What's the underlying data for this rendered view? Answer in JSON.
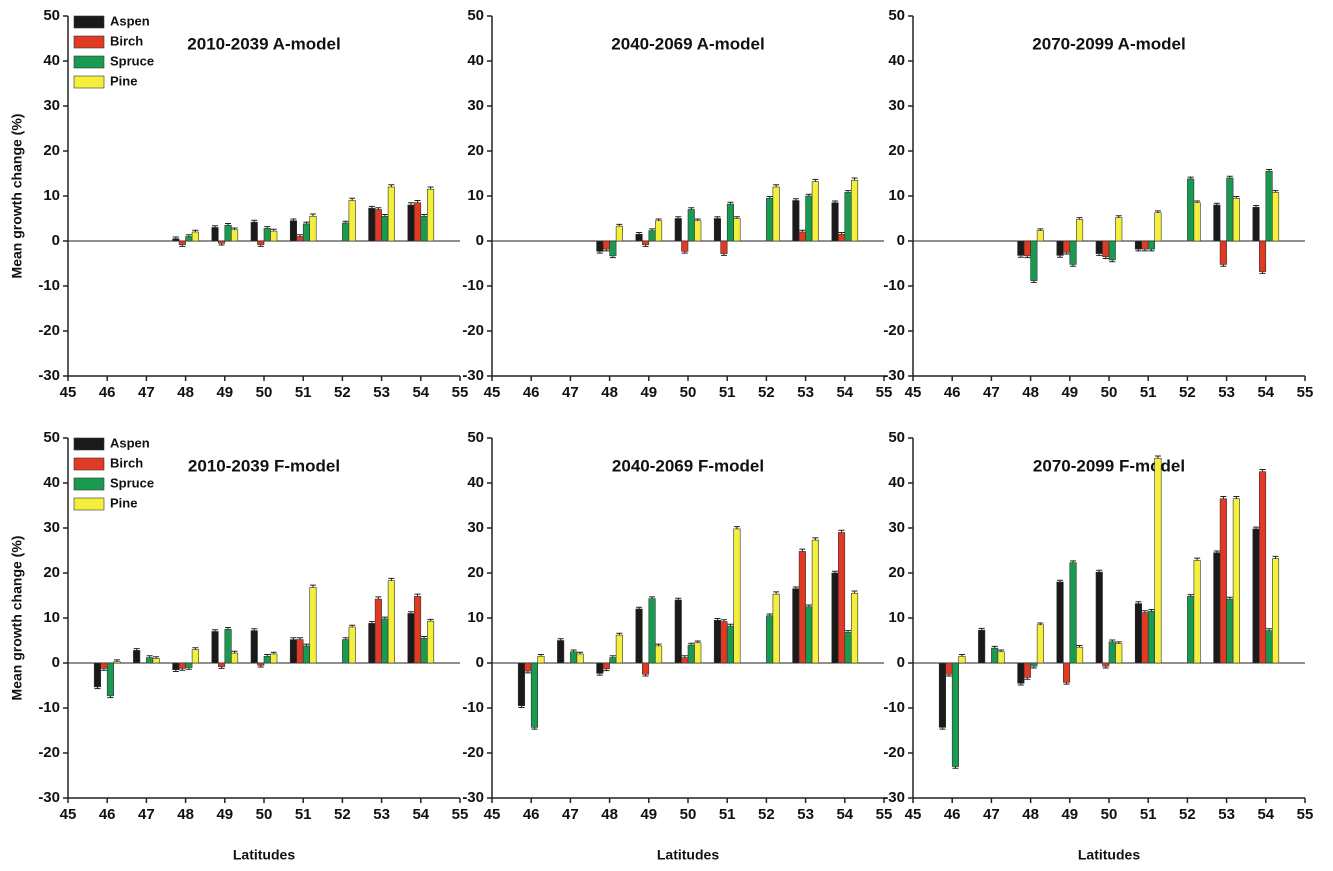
{
  "chart_data": [
    {
      "type": "bar",
      "title": "2010-2039 A-model",
      "ylabel": "Mean growth change (%)",
      "legend": "upper left",
      "x": [
        46,
        47,
        48,
        49,
        50,
        51,
        52,
        53,
        54
      ],
      "xlim": [
        45,
        55
      ],
      "xticks": [
        45,
        46,
        47,
        48,
        49,
        50,
        51,
        52,
        53,
        54,
        55
      ],
      "ylim": [
        -30,
        50
      ],
      "yticks": [
        -30,
        -20,
        -10,
        0,
        10,
        20,
        30,
        40,
        50
      ],
      "series": [
        {
          "name": "Aspen",
          "color": "#1a1a1a",
          "values": [
            null,
            null,
            0.5,
            3,
            4.2,
            4.5,
            null,
            7.3,
            8
          ],
          "errors": [
            null,
            null,
            0.4,
            0.4,
            0.4,
            0.4,
            null,
            0.4,
            0.5
          ]
        },
        {
          "name": "Birch",
          "color": "#e03a24",
          "values": [
            null,
            null,
            -0.8,
            -0.5,
            -0.8,
            1,
            null,
            7,
            8.5
          ],
          "errors": [
            null,
            null,
            0.4,
            0.4,
            0.4,
            0.4,
            null,
            0.4,
            0.5
          ]
        },
        {
          "name": "Spruce",
          "color": "#1a9a50",
          "values": [
            null,
            null,
            1,
            3.5,
            2.8,
            3.8,
            4,
            5.5,
            5.5
          ],
          "errors": [
            null,
            null,
            0.4,
            0.4,
            0.4,
            0.4,
            0.4,
            0.4,
            0.4
          ]
        },
        {
          "name": "Pine",
          "color": "#f3ef3c",
          "values": [
            null,
            null,
            2,
            2.5,
            2.2,
            5.5,
            9,
            12,
            11.5
          ],
          "errors": [
            null,
            null,
            0.4,
            0.4,
            0.4,
            0.5,
            0.5,
            0.5,
            0.5
          ]
        }
      ]
    },
    {
      "type": "bar",
      "title": "2040-2069 A-model",
      "x": [
        46,
        47,
        48,
        49,
        50,
        51,
        52,
        53,
        54
      ],
      "xlim": [
        45,
        55
      ],
      "xticks": [
        45,
        46,
        47,
        48,
        49,
        50,
        51,
        52,
        53,
        54,
        55
      ],
      "ylim": [
        -30,
        50
      ],
      "yticks": [
        -30,
        -20,
        -10,
        0,
        10,
        20,
        30,
        40,
        50
      ],
      "series": [
        {
          "color": "#1a1a1a",
          "values": [
            null,
            null,
            -2.3,
            1.5,
            5,
            5,
            null,
            9,
            8.5
          ],
          "errors": [
            null,
            null,
            0.4,
            0.4,
            0.4,
            0.4,
            null,
            0.4,
            0.4
          ]
        },
        {
          "color": "#e03a24",
          "values": [
            null,
            null,
            -1.8,
            -0.8,
            -2.3,
            -2.8,
            null,
            2,
            1.5
          ],
          "errors": [
            null,
            null,
            0.4,
            0.4,
            0.4,
            0.4,
            null,
            0.4,
            0.4
          ]
        },
        {
          "color": "#1a9a50",
          "values": [
            null,
            null,
            -3.3,
            2.3,
            7,
            8.2,
            9.5,
            10,
            10.8
          ],
          "errors": [
            null,
            null,
            0.4,
            0.4,
            0.4,
            0.4,
            0.4,
            0.4,
            0.4
          ]
        },
        {
          "color": "#f3ef3c",
          "values": [
            null,
            null,
            3.3,
            4.5,
            4.5,
            5,
            12,
            13.2,
            13.5
          ],
          "errors": [
            null,
            null,
            0.4,
            0.4,
            0.4,
            0.4,
            0.5,
            0.5,
            0.5
          ]
        }
      ]
    },
    {
      "type": "bar",
      "title": "2070-2099 A-model",
      "x": [
        46,
        47,
        48,
        49,
        50,
        51,
        52,
        53,
        54
      ],
      "xlim": [
        45,
        55
      ],
      "xticks": [
        45,
        46,
        47,
        48,
        49,
        50,
        51,
        52,
        53,
        54,
        55
      ],
      "ylim": [
        -30,
        50
      ],
      "yticks": [
        -30,
        -20,
        -10,
        0,
        10,
        20,
        30,
        40,
        50
      ],
      "series": [
        {
          "color": "#1a1a1a",
          "values": [
            null,
            null,
            -3.2,
            -3.2,
            -2.8,
            -1.8,
            null,
            8,
            7.5
          ],
          "errors": [
            null,
            null,
            0.4,
            0.4,
            0.4,
            0.4,
            null,
            0.4,
            0.4
          ]
        },
        {
          "color": "#e03a24",
          "values": [
            null,
            null,
            -3.3,
            -2.5,
            -3.5,
            -1.8,
            null,
            -5.2,
            -6.8
          ],
          "errors": [
            null,
            null,
            0.4,
            0.4,
            0.4,
            0.4,
            null,
            0.4,
            0.4
          ]
        },
        {
          "color": "#1a9a50",
          "values": [
            null,
            null,
            -8.8,
            -5.2,
            -4.2,
            -1.8,
            13.8,
            14,
            15.5
          ],
          "errors": [
            null,
            null,
            0.4,
            0.4,
            0.4,
            0.4,
            0.4,
            0.4,
            0.4
          ]
        },
        {
          "color": "#f3ef3c",
          "values": [
            null,
            null,
            2.3,
            4.8,
            5.2,
            6.3,
            8.5,
            9.5,
            10.8
          ],
          "errors": [
            null,
            null,
            0.4,
            0.4,
            0.4,
            0.4,
            0.4,
            0.4,
            0.4
          ]
        }
      ]
    },
    {
      "type": "bar",
      "title": "2010-2039 F-model",
      "ylabel": "Mean growth change (%)",
      "xlabel": "Latitudes",
      "legend": "upper left",
      "x": [
        46,
        47,
        48,
        49,
        50,
        51,
        52,
        53,
        54
      ],
      "xlim": [
        45,
        55
      ],
      "xticks": [
        45,
        46,
        47,
        48,
        49,
        50,
        51,
        52,
        53,
        54,
        55
      ],
      "ylim": [
        -30,
        50
      ],
      "yticks": [
        -30,
        -20,
        -10,
        0,
        10,
        20,
        30,
        40,
        50
      ],
      "series": [
        {
          "name": "Aspen",
          "color": "#1a1a1a",
          "values": [
            -5.3,
            2.8,
            -1.5,
            7,
            7.2,
            5.2,
            null,
            8.8,
            11
          ],
          "errors": [
            0.4,
            0.4,
            0.4,
            0.4,
            0.4,
            0.4,
            null,
            0.4,
            0.4
          ]
        },
        {
          "name": "Birch",
          "color": "#e03a24",
          "values": [
            -1.2,
            null,
            -1.2,
            -0.8,
            -0.5,
            5.2,
            null,
            14.2,
            14.8
          ],
          "errors": [
            0.4,
            null,
            0.4,
            0.4,
            0.4,
            0.4,
            null,
            0.5,
            0.5
          ]
        },
        {
          "name": "Spruce",
          "color": "#1a9a50",
          "values": [
            -7.3,
            1.2,
            -1,
            7.5,
            1.5,
            3.8,
            5.2,
            9.8,
            5.5
          ],
          "errors": [
            0.4,
            0.4,
            0.4,
            0.4,
            0.4,
            0.4,
            0.4,
            0.4,
            0.4
          ]
        },
        {
          "name": "Pine",
          "color": "#f3ef3c",
          "values": [
            0.3,
            1,
            3,
            2.2,
            2,
            16.8,
            8,
            18.3,
            9.3
          ],
          "errors": [
            0.4,
            0.4,
            0.4,
            0.4,
            0.4,
            0.5,
            0.4,
            0.5,
            0.4
          ]
        }
      ]
    },
    {
      "type": "bar",
      "title": "2040-2069 F-model",
      "xlabel": "Latitudes",
      "x": [
        46,
        47,
        48,
        49,
        50,
        51,
        52,
        53,
        54
      ],
      "xlim": [
        45,
        55
      ],
      "xticks": [
        45,
        46,
        47,
        48,
        49,
        50,
        51,
        52,
        53,
        54,
        55
      ],
      "ylim": [
        -30,
        50
      ],
      "yticks": [
        -30,
        -20,
        -10,
        0,
        10,
        20,
        30,
        40,
        50
      ],
      "series": [
        {
          "color": "#1a1a1a",
          "values": [
            -9.5,
            5,
            -2.3,
            12,
            14,
            9.5,
            null,
            16.5,
            20
          ],
          "errors": [
            0.4,
            0.4,
            0.4,
            0.4,
            0.4,
            0.4,
            null,
            0.4,
            0.4
          ]
        },
        {
          "color": "#e03a24",
          "values": [
            -1.8,
            null,
            -1.3,
            -2.5,
            1.2,
            9.2,
            null,
            24.8,
            29
          ],
          "errors": [
            0.4,
            null,
            0.4,
            0.4,
            0.4,
            0.4,
            null,
            0.5,
            0.5
          ]
        },
        {
          "color": "#1a9a50",
          "values": [
            -14.3,
            2.5,
            1.2,
            14.3,
            4,
            8.2,
            10.5,
            12.5,
            6.8
          ],
          "errors": [
            0.4,
            0.4,
            0.4,
            0.4,
            0.4,
            0.4,
            0.4,
            0.4,
            0.4
          ]
        },
        {
          "color": "#f3ef3c",
          "values": [
            1.5,
            2,
            6.2,
            3.8,
            4.5,
            29.8,
            15.3,
            27.3,
            15.5
          ],
          "errors": [
            0.4,
            0.4,
            0.4,
            0.4,
            0.4,
            0.5,
            0.5,
            0.5,
            0.5
          ]
        }
      ]
    },
    {
      "type": "bar",
      "title": "2070-2099 F-model",
      "xlabel": "Latitudes",
      "x": [
        46,
        47,
        48,
        49,
        50,
        51,
        52,
        53,
        54
      ],
      "xlim": [
        45,
        55
      ],
      "xticks": [
        45,
        46,
        47,
        48,
        49,
        50,
        51,
        52,
        53,
        54,
        55
      ],
      "ylim": [
        -30,
        50
      ],
      "yticks": [
        -30,
        -20,
        -10,
        0,
        10,
        20,
        30,
        40,
        50
      ],
      "series": [
        {
          "color": "#1a1a1a",
          "values": [
            -14.3,
            7.3,
            -4.5,
            18,
            20.2,
            13.2,
            null,
            24.5,
            29.8
          ],
          "errors": [
            0.4,
            0.4,
            0.4,
            0.4,
            0.4,
            0.4,
            null,
            0.4,
            0.4
          ]
        },
        {
          "color": "#e03a24",
          "values": [
            -2.5,
            null,
            -3.2,
            -4.3,
            -0.7,
            11.2,
            null,
            36.5,
            42.5
          ],
          "errors": [
            0.4,
            null,
            0.4,
            0.4,
            0.4,
            0.4,
            null,
            0.5,
            0.5
          ]
        },
        {
          "color": "#1a9a50",
          "values": [
            -23,
            3.3,
            -0.7,
            22.3,
            4.7,
            11.5,
            14.8,
            14.2,
            7.2
          ],
          "errors": [
            0.4,
            0.4,
            0.4,
            0.4,
            0.4,
            0.4,
            0.4,
            0.4,
            0.4
          ]
        },
        {
          "color": "#f3ef3c",
          "values": [
            1.5,
            2.5,
            8.5,
            3.5,
            4.3,
            45.5,
            22.8,
            36.5,
            23.2
          ],
          "errors": [
            0.4,
            0.4,
            0.4,
            0.4,
            0.4,
            0.5,
            0.5,
            0.5,
            0.5
          ]
        }
      ]
    }
  ]
}
